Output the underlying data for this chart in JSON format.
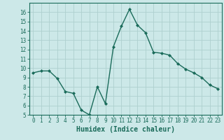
{
  "x": [
    0,
    1,
    2,
    3,
    4,
    5,
    6,
    7,
    8,
    9,
    10,
    11,
    12,
    13,
    14,
    15,
    16,
    17,
    18,
    19,
    20,
    21,
    22,
    23
  ],
  "y": [
    9.5,
    9.7,
    9.7,
    8.9,
    7.5,
    7.3,
    5.5,
    5.0,
    8.0,
    6.2,
    12.3,
    14.5,
    16.3,
    14.6,
    13.8,
    11.7,
    11.6,
    11.4,
    10.5,
    9.9,
    9.5,
    9.0,
    8.2,
    7.8
  ],
  "line_color": "#1a6b5a",
  "marker": "D",
  "marker_size": 2.0,
  "bg_color": "#cce8e8",
  "grid_color": "#aed0ce",
  "axis_color": "#1a6b5a",
  "xlabel": "Humidex (Indice chaleur)",
  "xlabel_fontsize": 7,
  "ylim": [
    5,
    17
  ],
  "xlim": [
    -0.5,
    23.5
  ],
  "yticks": [
    5,
    6,
    7,
    8,
    9,
    10,
    11,
    12,
    13,
    14,
    15,
    16
  ],
  "xticks": [
    0,
    1,
    2,
    3,
    4,
    5,
    6,
    7,
    8,
    9,
    10,
    11,
    12,
    13,
    14,
    15,
    16,
    17,
    18,
    19,
    20,
    21,
    22,
    23
  ],
  "tick_fontsize": 5.5,
  "linewidth": 1.0
}
